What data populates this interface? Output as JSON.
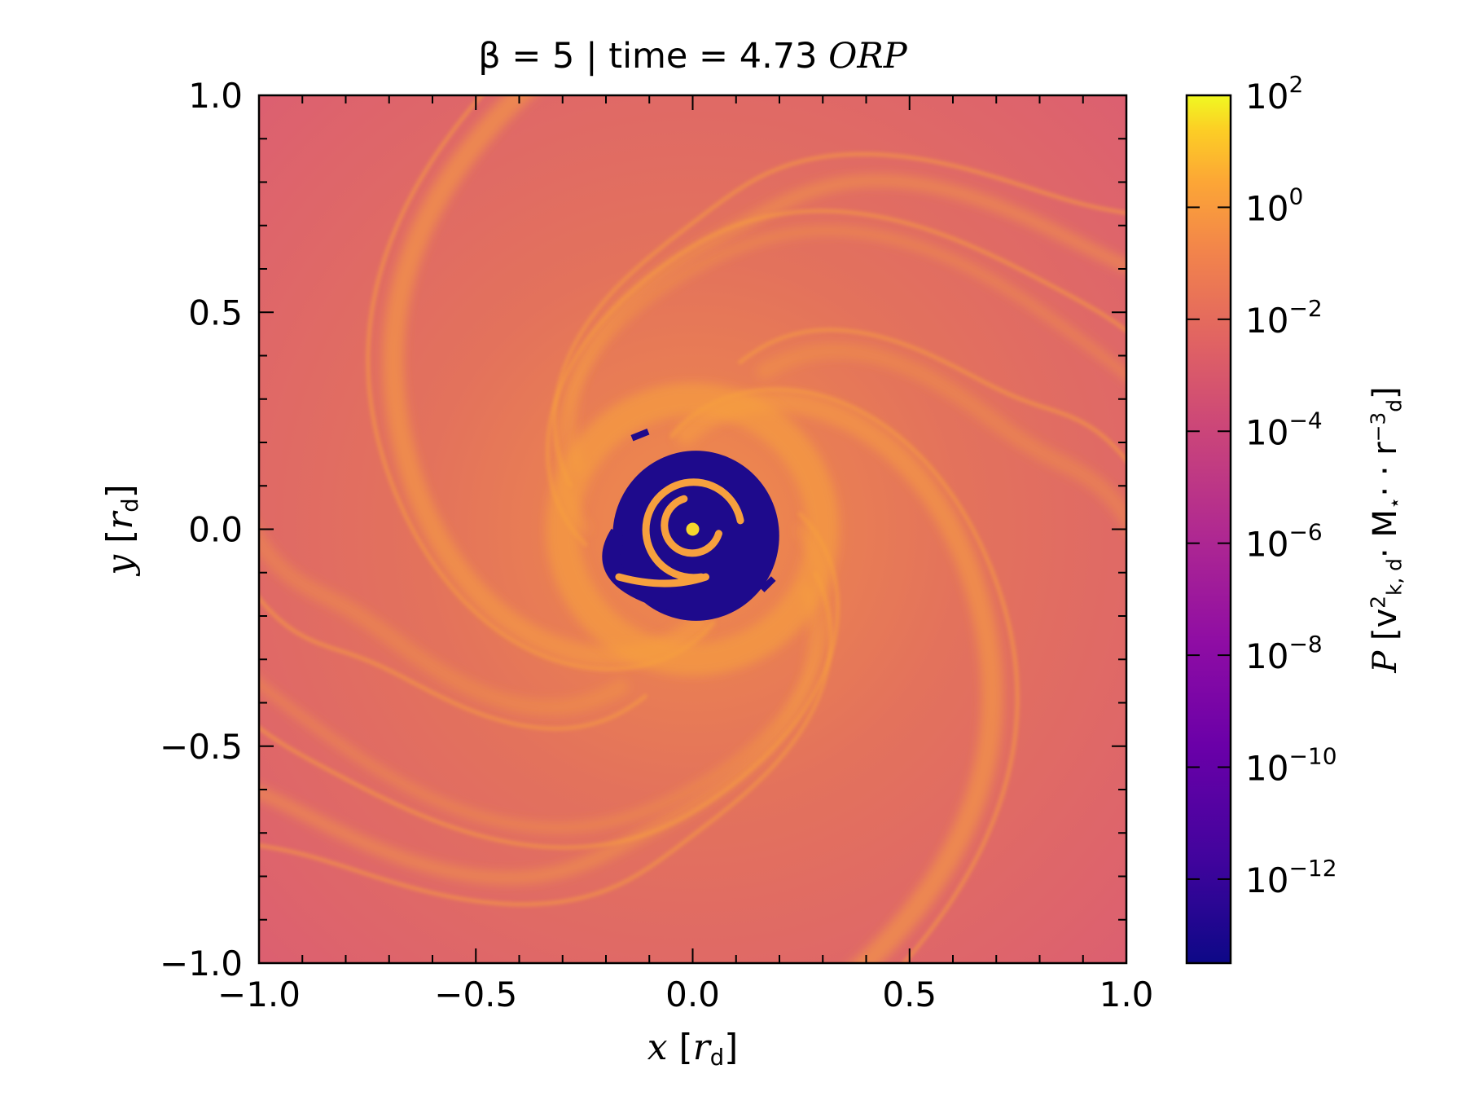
{
  "chart_data": {
    "type": "heatmap",
    "title": {
      "prefix": "β = 5 | time = 4.73 ",
      "suffix": "ORP"
    },
    "xlabel": {
      "var": "x",
      "pre": " [",
      "unit": "r",
      "sub": "d",
      "post": "]"
    },
    "ylabel": {
      "var": "y",
      "pre": " [",
      "unit": "r",
      "sub": "d",
      "post": "]"
    },
    "xlim": [
      -1.0,
      1.0
    ],
    "ylim": [
      -1.0,
      1.0
    ],
    "xticks": [
      -1.0,
      -0.5,
      0.0,
      0.5,
      1.0
    ],
    "yticks": [
      -1.0,
      -0.5,
      0.0,
      0.5,
      1.0
    ],
    "xtick_labels": [
      "−1.0",
      "−0.5",
      "0.0",
      "0.5",
      "1.0"
    ],
    "ytick_labels": [
      "−1.0",
      "−0.5",
      "0.0",
      "0.5",
      "1.0"
    ],
    "colorbar": {
      "label": {
        "P": "P",
        "open": " [v",
        "sq": "2",
        "sub1": "k, d",
        "mid": "· M",
        "sub2": "⋆",
        "mid2": "· · r",
        "sup3": "−3",
        "sub3": "d",
        "close": "]"
      },
      "scale": "log",
      "range_exponents": [
        -13.5,
        2
      ],
      "tick_exponents": [
        2,
        0,
        -2,
        -4,
        -6,
        -8,
        -10,
        -12
      ],
      "tick_labels": [
        {
          "base": "10",
          "exp": "2"
        },
        {
          "base": "10",
          "exp": "0"
        },
        {
          "base": "10",
          "exp": "−2"
        },
        {
          "base": "10",
          "exp": "−4"
        },
        {
          "base": "10",
          "exp": "−6"
        },
        {
          "base": "10",
          "exp": "−8"
        },
        {
          "base": "10",
          "exp": "−10"
        },
        {
          "base": "10",
          "exp": "−12"
        }
      ],
      "colormap": "plasma"
    },
    "field": {
      "background_colors": [
        "#dc6070",
        "#e3725c",
        "#f08c4a"
      ],
      "arm_color": "#f7a03e",
      "void_color": "#1e0a8c",
      "core_color": "#f6d72c",
      "void_radius_data": 0.2,
      "spiral_arm_count": 2,
      "rotation": "counter-clockwise"
    }
  }
}
